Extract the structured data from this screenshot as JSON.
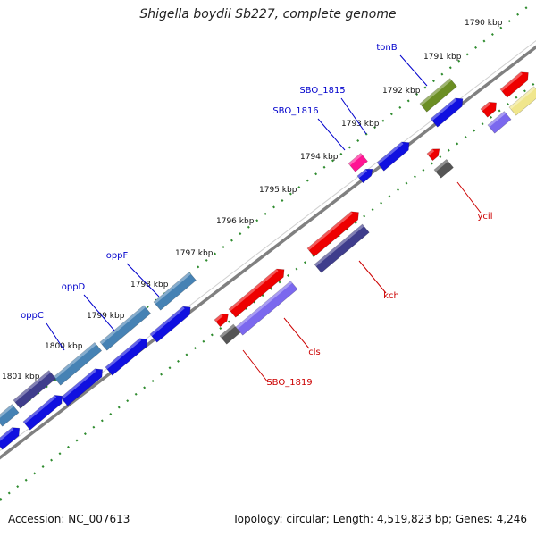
{
  "title": "Shigella boydii Sb227, complete genome",
  "footer": {
    "accession": "Accession: NC_007613",
    "summary": "Topology: circular; Length: 4,519,823 bp; Genes: 4,246"
  },
  "colors": {
    "backbone": "#808080",
    "tick": "#2e8b2e",
    "blue": "#1010e0",
    "red": "#ee0000",
    "purple": "#7b68ee",
    "darkslate": "#3f3d8c",
    "steelblue": "#4682b4",
    "olive": "#6b8e23",
    "magenta": "#ff1493",
    "gray": "#555555",
    "khaki": "#f0e68c",
    "label_blue": "#0000cc",
    "label_red": "#cc0000"
  },
  "kbp_labels": [
    "1790 kbp",
    "1791 kbp",
    "1792 kbp",
    "1793 kbp",
    "1794 kbp",
    "1795 kbp",
    "1796 kbp",
    "1797 kbp",
    "1798 kbp",
    "1799 kbp",
    "1800 kbp",
    "1801 kbp"
  ],
  "gene_labels": [
    "tonB",
    "SBO_1815",
    "SBO_1816",
    "oppF",
    "oppD",
    "oppC",
    "ycil",
    "kch",
    "cls",
    "SBO_1819"
  ]
}
